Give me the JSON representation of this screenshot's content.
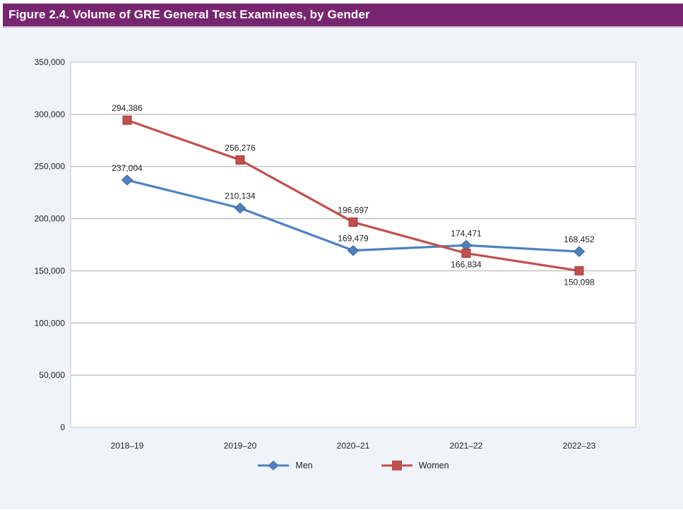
{
  "header": {
    "title": "Figure 2.4. Volume of GRE General Test Examinees, by Gender",
    "bar_color": "#78256F"
  },
  "colors": {
    "panel_bg": "#F0F3F9",
    "plot_bg": "#FFFFFF",
    "plot_border": "#C6C6C6",
    "gridline": "#A9A9A9",
    "label_text": "#1F1F1F"
  },
  "chart_data": {
    "type": "line",
    "categories": [
      "2018–19",
      "2019–20",
      "2020–21",
      "2021–22",
      "2022–23"
    ],
    "series": [
      {
        "name": "Men",
        "marker": "diamond",
        "color": "#4F81BD",
        "marker_stroke": "#38639C",
        "values": [
          237004,
          210134,
          169479,
          174471,
          168452
        ],
        "labels": [
          "237,004",
          "210,134",
          "169,479",
          "174,471",
          "168,452"
        ],
        "label_positions": [
          "above",
          "above",
          "above",
          "above",
          "above"
        ]
      },
      {
        "name": "Women",
        "marker": "square",
        "color": "#C0504D",
        "marker_stroke": "#9E3B39",
        "values": [
          294386,
          256276,
          196697,
          166834,
          150098
        ],
        "labels": [
          "294,386",
          "256,276",
          "196,697",
          "166,834",
          "150,098"
        ],
        "label_positions": [
          "above",
          "above",
          "above",
          "below",
          "below"
        ]
      }
    ],
    "ylim": [
      0,
      350000
    ],
    "y_tick_step": 50000,
    "y_tick_labels": [
      "0",
      "50,000",
      "100,000",
      "150,000",
      "200,000",
      "250,000",
      "300,000",
      "350,000"
    ],
    "grid": "horizontal",
    "legend_position": "bottom"
  }
}
